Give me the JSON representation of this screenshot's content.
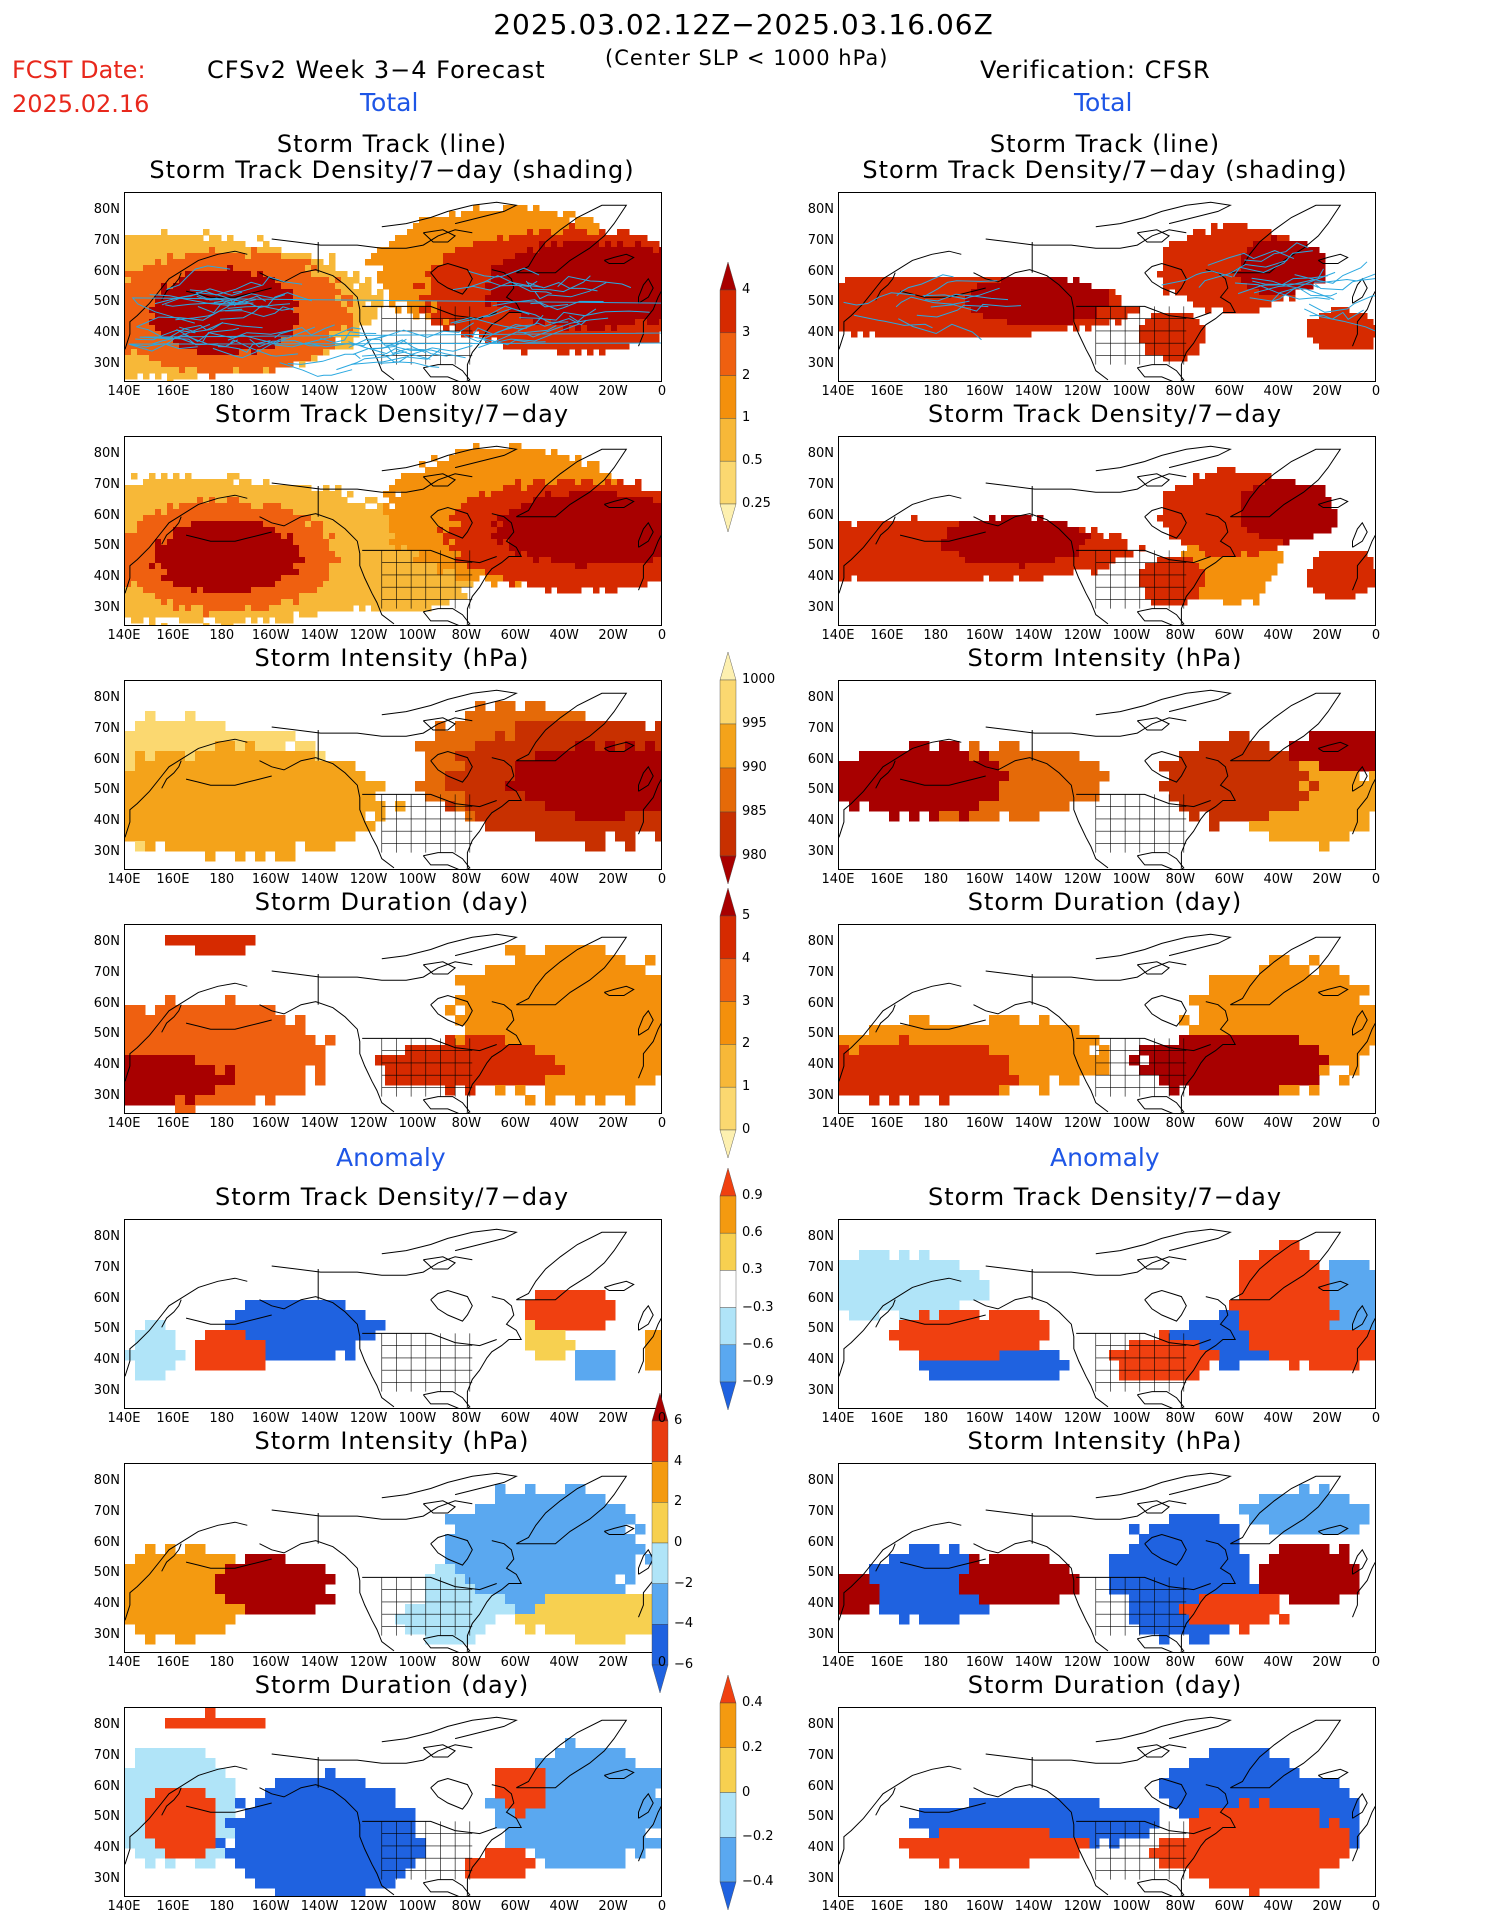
{
  "header": {
    "title": "2025.03.02.12Z−2025.03.16.06Z",
    "fcst_label": "FCST Date:",
    "fcst_date": "2025.02.16",
    "left_title": "CFSv2 Week 3−4 Forecast",
    "condition": "(Center SLP < 1000 hPa)",
    "right_title": "Verification: CFSR"
  },
  "sections": {
    "total": "Total",
    "anomaly": "Anomaly"
  },
  "panel_titles": {
    "track_line": "Storm Track (line)",
    "track_shading": "Storm Track Density/7−day (shading)",
    "density": "Storm Track Density/7−day",
    "intensity": "Storm Intensity (hPa)",
    "duration": "Storm Duration (day)"
  },
  "axes": {
    "lat_labels": [
      "80N",
      "70N",
      "60N",
      "50N",
      "40N",
      "30N"
    ],
    "lon_labels": [
      "140E",
      "160E",
      "180",
      "160W",
      "140W",
      "120W",
      "100W",
      "80W",
      "60W",
      "40W",
      "20W",
      "0"
    ]
  },
  "colorbars": {
    "density": {
      "labels": [
        "4",
        "3",
        "2",
        "1",
        "0.5",
        "0.25"
      ],
      "colors": [
        "#a80000",
        "#d62a00",
        "#ef6010",
        "#f4900c",
        "#f7b838",
        "#fbd870",
        "#fdf0b0"
      ]
    },
    "intensity": {
      "labels": [
        "1000",
        "995",
        "990",
        "985",
        "980"
      ],
      "colors": [
        "#fdf0b0",
        "#fbd870",
        "#f4a31a",
        "#e56a08",
        "#c83000",
        "#a80000"
      ]
    },
    "duration": {
      "labels": [
        "5",
        "4",
        "3",
        "2",
        "1",
        "0"
      ],
      "colors": [
        "#a80000",
        "#d62a00",
        "#ef6010",
        "#f4900c",
        "#f7b838",
        "#fbd870",
        "#fdf0b0"
      ]
    },
    "anom_density": {
      "labels": [
        "0.9",
        "0.6",
        "0.3",
        "−0.3",
        "−0.6",
        "−0.9"
      ],
      "colors": [
        "#f04010",
        "#f49a10",
        "#f7d050",
        "#ffffff",
        "#b0e4f8",
        "#5aa8f0",
        "#1f62e0"
      ]
    },
    "anom_intensity": {
      "labels": [
        "6",
        "4",
        "2",
        "0",
        "−2",
        "−4",
        "−6"
      ],
      "colors": [
        "#a80000",
        "#e83c10",
        "#f49a10",
        "#f7d050",
        "#b0e4f8",
        "#5aa8f0",
        "#1f62e0",
        "#1f62e0"
      ]
    },
    "anom_duration": {
      "labels": [
        "0.4",
        "0.2",
        "0",
        "−0.2",
        "−0.4"
      ],
      "colors": [
        "#f04010",
        "#f49a10",
        "#f7d050",
        "#b0e4f8",
        "#5aa8f0",
        "#1f62e0"
      ]
    }
  },
  "map_colors": {
    "ocean_fill": "#ffffff",
    "coast": "#000000",
    "track_line": "#2aa8e0"
  }
}
